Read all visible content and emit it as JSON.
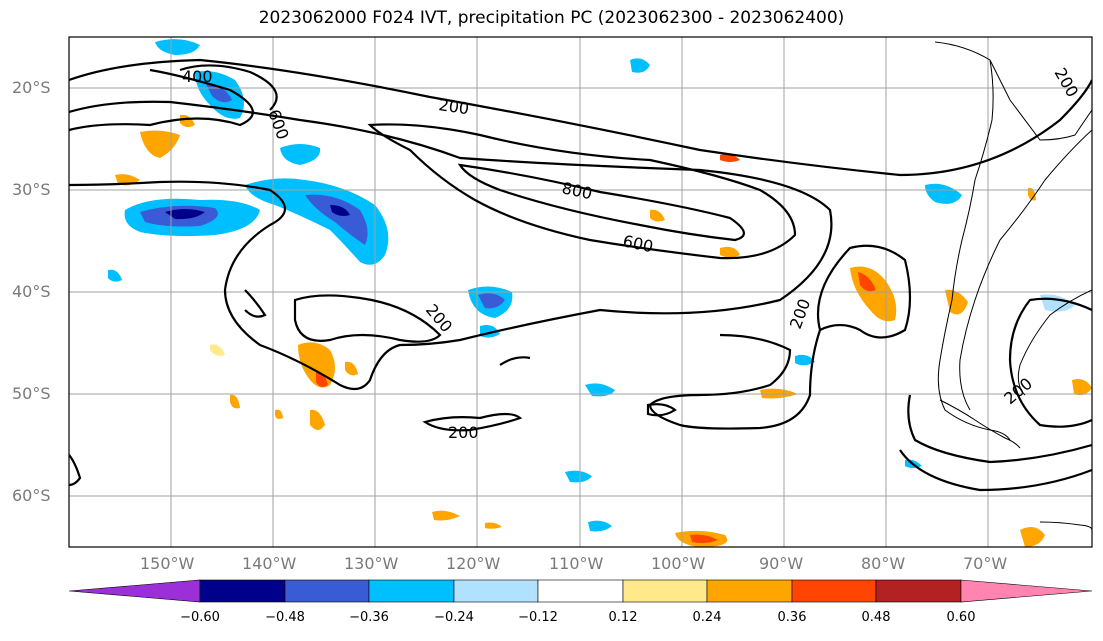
{
  "title": "2023062000 F024 IVT, precipitation PC (2023062300 - 2023062400)",
  "map": {
    "lat_labels": [
      "20°S",
      "30°S",
      "40°S",
      "50°S",
      "60°S"
    ],
    "lon_labels": [
      "150°W",
      "140°W",
      "130°W",
      "120°W",
      "110°W",
      "100°W",
      "90°W",
      "80°W",
      "70°W"
    ],
    "contour_labels": [
      {
        "text": "400"
      },
      {
        "text": "600"
      },
      {
        "text": "200"
      },
      {
        "text": "800"
      },
      {
        "text": "600"
      },
      {
        "text": "200"
      },
      {
        "text": "200"
      },
      {
        "text": "200"
      },
      {
        "text": "200"
      },
      {
        "text": "200"
      }
    ]
  },
  "colorbar": {
    "ticks": [
      "−0.60",
      "−0.48",
      "−0.36",
      "−0.24",
      "−0.12",
      "0.12",
      "0.24",
      "0.36",
      "0.48",
      "0.60"
    ],
    "colors": [
      "#9b30d9",
      "#00008b",
      "#3a5bd6",
      "#00bfff",
      "#b0e2ff",
      "#ffffff",
      "#ffe98a",
      "#ffa500",
      "#ff4500",
      "#b22222",
      "#ff85b0"
    ]
  }
}
